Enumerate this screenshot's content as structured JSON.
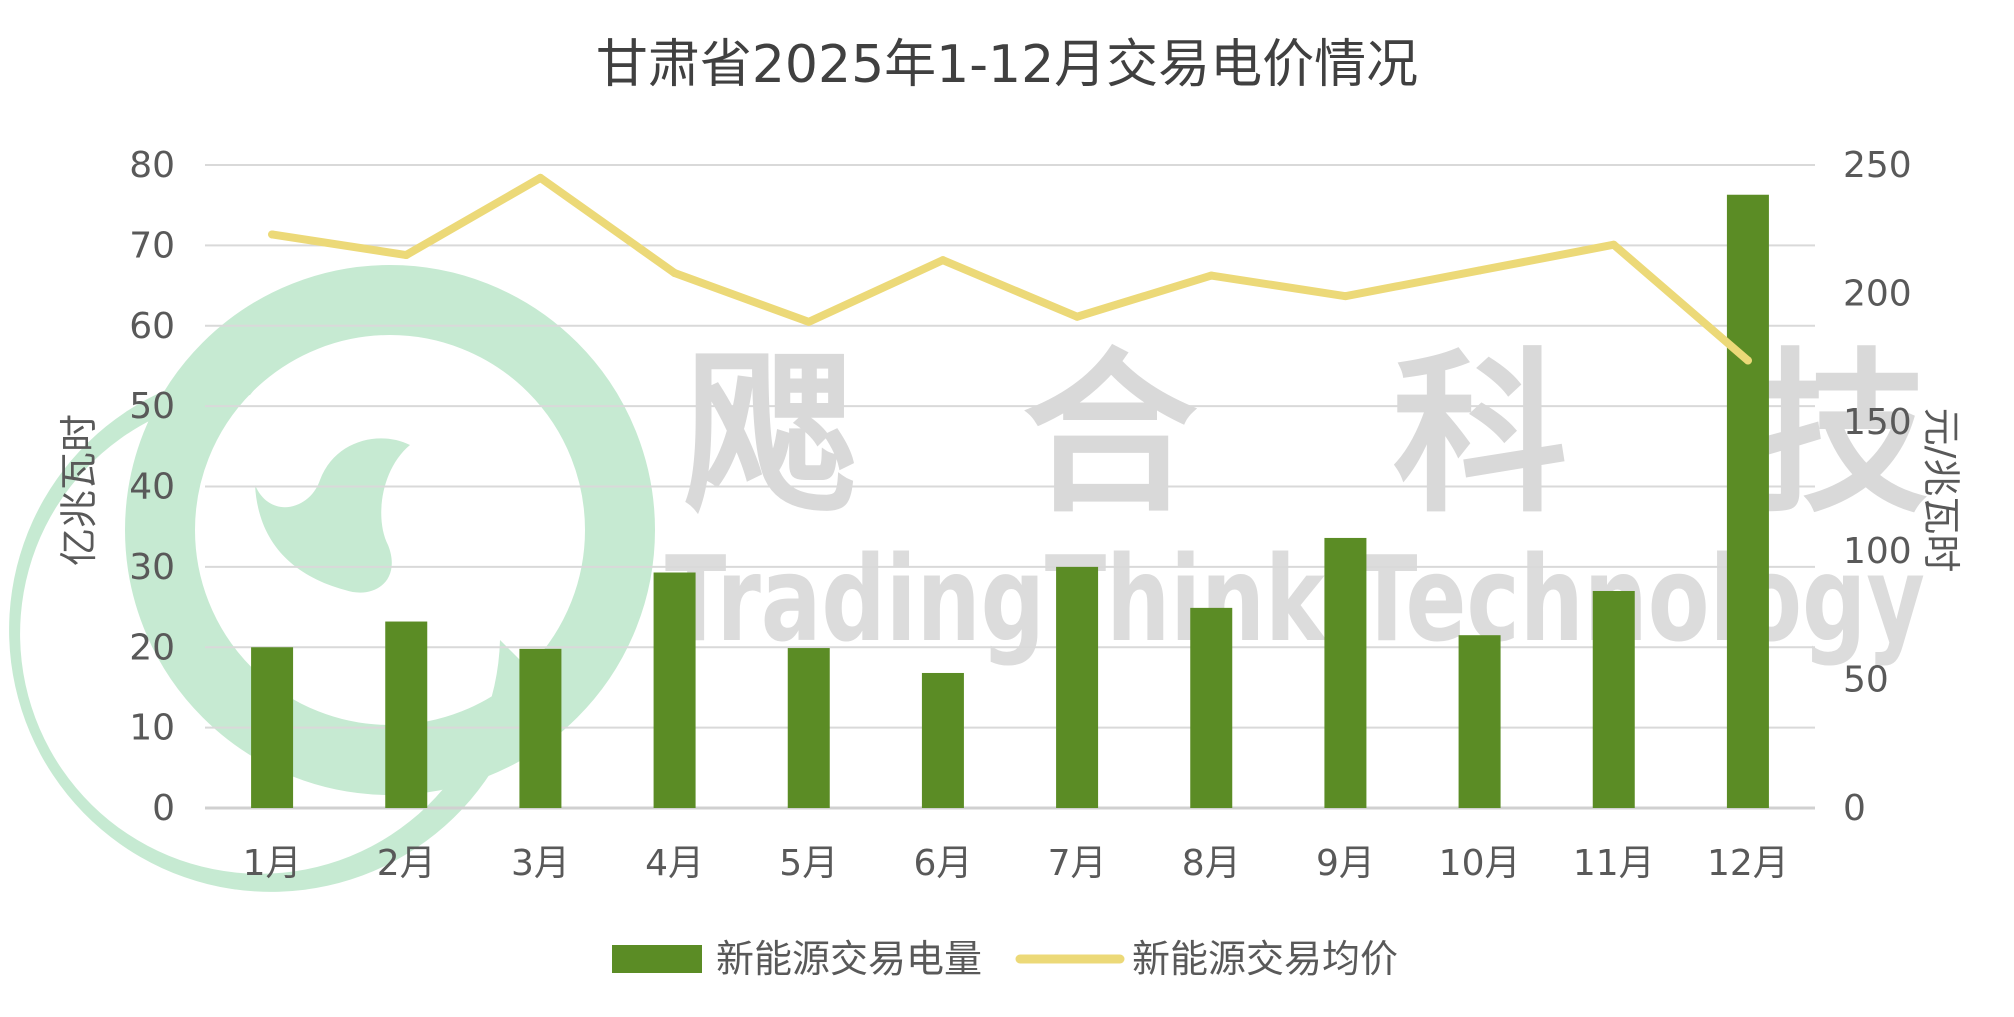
{
  "colors": {
    "bar": "#5b8c25",
    "line": "#ecd978",
    "grid": "#d9d9d9",
    "text": "#595959",
    "logo": "#c6ead2"
  },
  "watermark": {
    "cn": [
      "飔",
      "合",
      "科",
      "技"
    ],
    "en": "TradingThink Technology"
  },
  "chart_data": {
    "type": "bar",
    "title": "甘肃省2025年1-12月交易电价情况",
    "categories": [
      "1月",
      "2月",
      "3月",
      "4月",
      "5月",
      "6月",
      "7月",
      "8月",
      "9月",
      "10月",
      "11月",
      "12月"
    ],
    "series": [
      {
        "name": "新能源交易电量",
        "type": "bar",
        "axis": "left",
        "values": [
          20,
          23.2,
          19.8,
          29.3,
          19.9,
          16.8,
          30,
          24.9,
          33.6,
          21.5,
          27,
          76.3
        ]
      },
      {
        "name": "新能源交易均价",
        "type": "line",
        "axis": "right",
        "values": [
          223,
          215,
          245,
          208,
          189,
          213,
          191,
          207,
          199,
          209,
          219,
          174
        ]
      }
    ],
    "y_left": {
      "label": "亿兆瓦时",
      "min": 0,
      "max": 80,
      "ticks": [
        "0",
        "10",
        "20",
        "30",
        "40",
        "50",
        "60",
        "70",
        "80"
      ]
    },
    "y_right": {
      "label": "元/兆瓦时",
      "min": 0,
      "max": 250,
      "ticks": [
        "0",
        "50",
        "100",
        "150",
        "200",
        "250"
      ]
    },
    "grid": true,
    "legend": "bottom"
  }
}
